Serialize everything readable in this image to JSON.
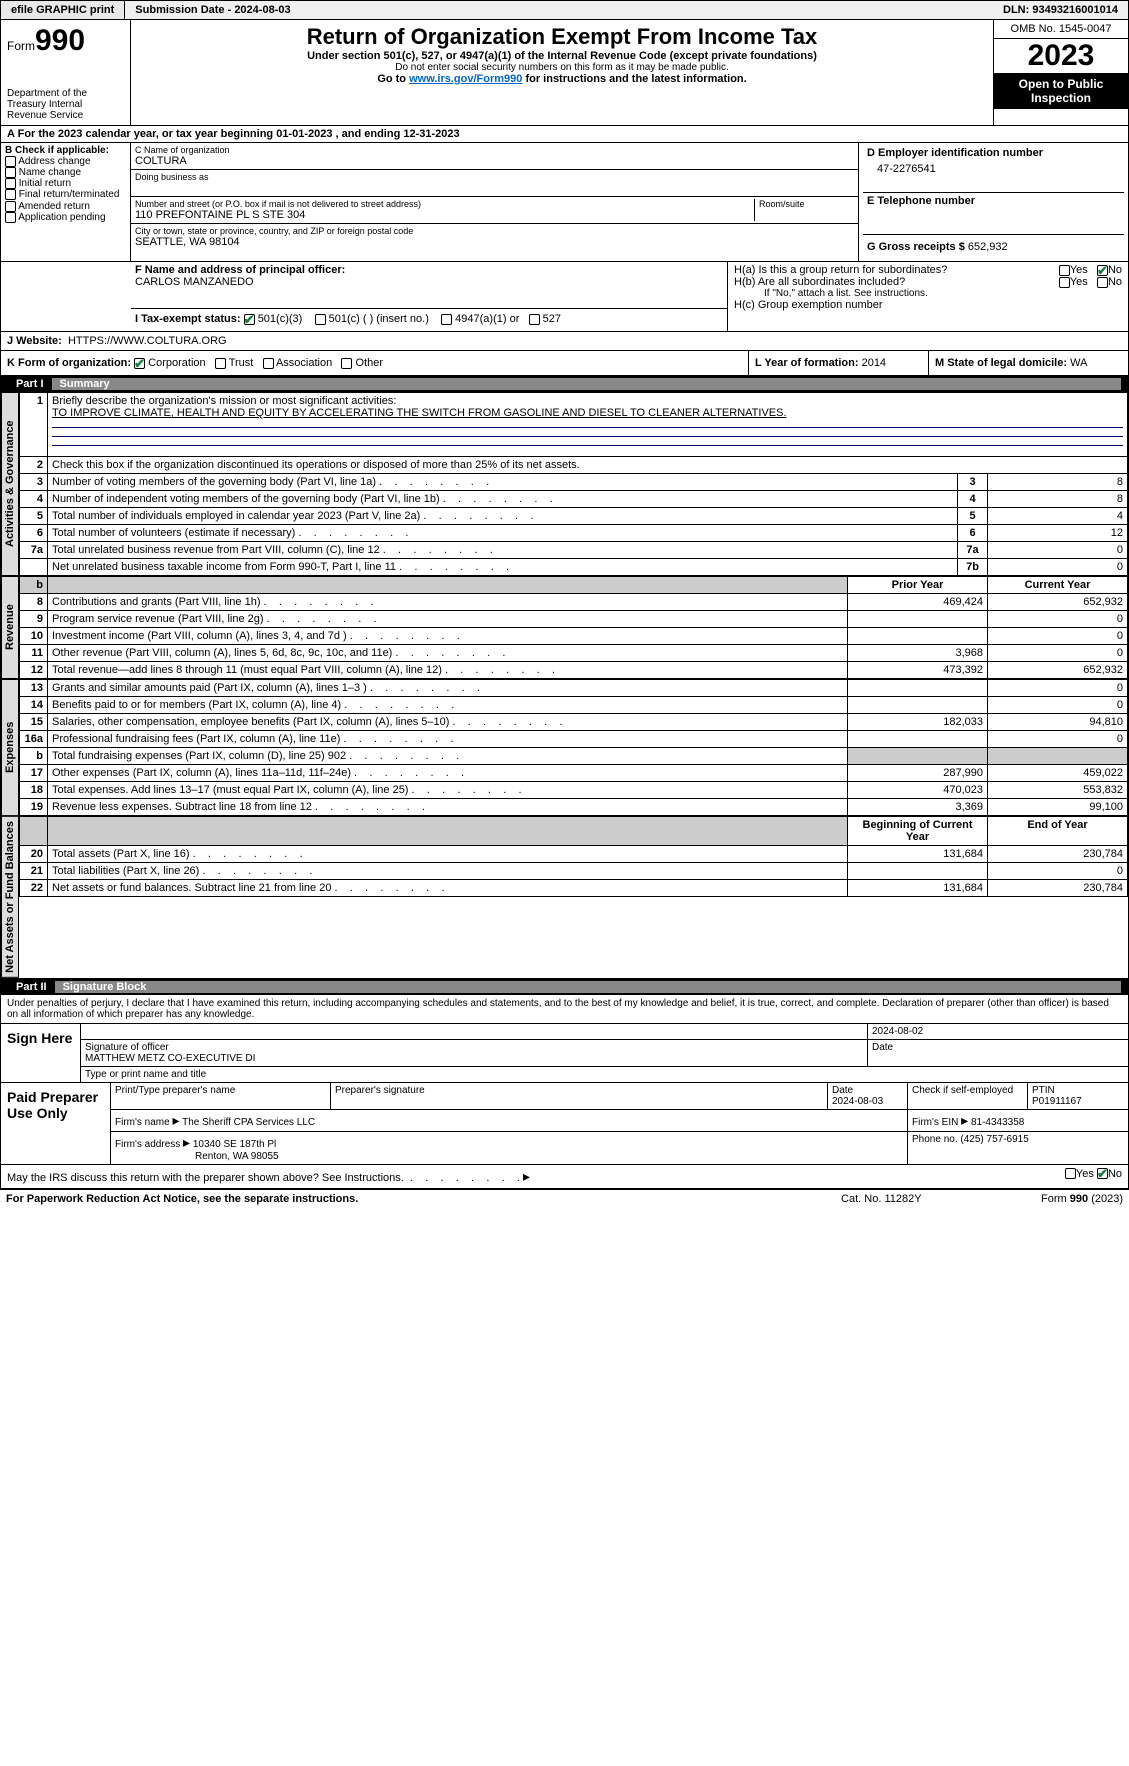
{
  "topbar": {
    "efile": "efile GRAPHIC print",
    "submission": "Submission Date - 2024-08-03",
    "dln_label": "DLN:",
    "dln": "93493216001014"
  },
  "header": {
    "form_word": "Form",
    "form_num": "990",
    "dept": "Department of the Treasury Internal Revenue Service",
    "title": "Return of Organization Exempt From Income Tax",
    "sub1": "Under section 501(c), 527, or 4947(a)(1) of the Internal Revenue Code (except private foundations)",
    "sub2": "Do not enter social security numbers on this form as it may be made public.",
    "sub3_pre": "Go to ",
    "sub3_link": "www.irs.gov/Form990",
    "sub3_post": " for instructions and the latest information.",
    "omb": "OMB No. 1545-0047",
    "year": "2023",
    "inspect": "Open to Public Inspection"
  },
  "A": {
    "text": "For the 2023 calendar year, or tax year beginning 01-01-2023   , and ending 12-31-2023"
  },
  "B": {
    "label": "B Check if applicable:",
    "items": [
      "Address change",
      "Name change",
      "Initial return",
      "Final return/terminated",
      "Amended return",
      "Application pending"
    ]
  },
  "C": {
    "name_label": "C Name of organization",
    "name": "COLTURA",
    "dba_label": "Doing business as",
    "street_label": "Number and street (or P.O. box if mail is not delivered to street address)",
    "street": "110 PREFONTAINE PL S STE 304",
    "room_label": "Room/suite",
    "city_label": "City or town, state or province, country, and ZIP or foreign postal code",
    "city": "SEATTLE, WA  98104"
  },
  "D": {
    "label": "D Employer identification number",
    "value": "47-2276541"
  },
  "E": {
    "label": "E Telephone number",
    "value": ""
  },
  "G": {
    "label": "G Gross receipts $",
    "value": "652,932"
  },
  "F": {
    "label": "F  Name and address of principal officer:",
    "value": "CARLOS MANZANEDO"
  },
  "H": {
    "a": "H(a)  Is this a group return for subordinates?",
    "b": "H(b)  Are all subordinates included?",
    "b_note": "If \"No,\" attach a list. See instructions.",
    "c": "H(c)  Group exemption number  ",
    "yes": "Yes",
    "no": "No",
    "a_yes": false,
    "a_no": true,
    "b_yes": false,
    "b_no": false
  },
  "I": {
    "label": "I   Tax-exempt status:",
    "opts": [
      "501(c)(3)",
      "501(c) (  ) (insert no.)",
      "4947(a)(1) or",
      "527"
    ],
    "checked": 0
  },
  "J": {
    "label": "J   Website: ",
    "value": "HTTPS://WWW.COLTURA.ORG"
  },
  "K": {
    "label": "K Form of organization:",
    "opts": [
      "Corporation",
      "Trust",
      "Association",
      "Other"
    ],
    "checked": 0
  },
  "L": {
    "label": "L Year of formation:",
    "value": "2014"
  },
  "M": {
    "label": "M State of legal domicile:",
    "value": "WA"
  },
  "part1": {
    "label": "Part I",
    "title": "Summary"
  },
  "summary": {
    "line1_label": "Briefly describe the organization's mission or most significant activities:",
    "line1_text": "TO IMPROVE CLIMATE, HEALTH AND EQUITY BY ACCELERATING THE SWITCH FROM GASOLINE AND DIESEL TO CLEANER ALTERNATIVES.",
    "line2_label": "Check this box      if the organization discontinued its operations or disposed of more than 25% of its net assets.",
    "gov_rows": [
      {
        "n": "3",
        "t": "Number of voting members of the governing body (Part VI, line 1a)",
        "box": "3",
        "v": "8"
      },
      {
        "n": "4",
        "t": "Number of independent voting members of the governing body (Part VI, line 1b)",
        "box": "4",
        "v": "8"
      },
      {
        "n": "5",
        "t": "Total number of individuals employed in calendar year 2023 (Part V, line 2a)",
        "box": "5",
        "v": "4"
      },
      {
        "n": "6",
        "t": "Total number of volunteers (estimate if necessary)",
        "box": "6",
        "v": "12"
      },
      {
        "n": "7a",
        "t": "Total unrelated business revenue from Part VIII, column (C), line 12",
        "box": "7a",
        "v": "0"
      },
      {
        "n": "",
        "t": "Net unrelated business taxable income from Form 990-T, Part I, line 11",
        "box": "7b",
        "v": "0"
      }
    ],
    "prior_hdr": "Prior Year",
    "curr_hdr": "Current Year",
    "rev_rows": [
      {
        "n": "8",
        "t": "Contributions and grants (Part VIII, line 1h)",
        "p": "469,424",
        "c": "652,932"
      },
      {
        "n": "9",
        "t": "Program service revenue (Part VIII, line 2g)",
        "p": "",
        "c": "0"
      },
      {
        "n": "10",
        "t": "Investment income (Part VIII, column (A), lines 3, 4, and 7d )",
        "p": "",
        "c": "0"
      },
      {
        "n": "11",
        "t": "Other revenue (Part VIII, column (A), lines 5, 6d, 8c, 9c, 10c, and 11e)",
        "p": "3,968",
        "c": "0"
      },
      {
        "n": "12",
        "t": "Total revenue—add lines 8 through 11 (must equal Part VIII, column (A), line 12)",
        "p": "473,392",
        "c": "652,932"
      }
    ],
    "exp_rows": [
      {
        "n": "13",
        "t": "Grants and similar amounts paid (Part IX, column (A), lines 1–3 )",
        "p": "",
        "c": "0"
      },
      {
        "n": "14",
        "t": "Benefits paid to or for members (Part IX, column (A), line 4)",
        "p": "",
        "c": "0"
      },
      {
        "n": "15",
        "t": "Salaries, other compensation, employee benefits (Part IX, column (A), lines 5–10)",
        "p": "182,033",
        "c": "94,810"
      },
      {
        "n": "16a",
        "t": "Professional fundraising fees (Part IX, column (A), line 11e)",
        "p": "",
        "c": "0"
      },
      {
        "n": "b",
        "t": "Total fundraising expenses (Part IX, column (D), line 25) 902",
        "p": "__GRAY__",
        "c": "__GRAY__"
      },
      {
        "n": "17",
        "t": "Other expenses (Part IX, column (A), lines 11a–11d, 11f–24e)",
        "p": "287,990",
        "c": "459,022"
      },
      {
        "n": "18",
        "t": "Total expenses. Add lines 13–17 (must equal Part IX, column (A), line 25)",
        "p": "470,023",
        "c": "553,832"
      },
      {
        "n": "19",
        "t": "Revenue less expenses. Subtract line 18 from line 12",
        "p": "3,369",
        "c": "99,100"
      }
    ],
    "net_hdr1": "Beginning of Current Year",
    "net_hdr2": "End of Year",
    "net_rows": [
      {
        "n": "20",
        "t": "Total assets (Part X, line 16)",
        "p": "131,684",
        "c": "230,784"
      },
      {
        "n": "21",
        "t": "Total liabilities (Part X, line 26)",
        "p": "",
        "c": "0"
      },
      {
        "n": "22",
        "t": "Net assets or fund balances. Subtract line 21 from line 20",
        "p": "131,684",
        "c": "230,784"
      }
    ]
  },
  "vtabs": {
    "gov": "Activities & Governance",
    "rev": "Revenue",
    "exp": "Expenses",
    "net": "Net Assets or Fund Balances"
  },
  "part2": {
    "label": "Part II",
    "title": "Signature Block"
  },
  "sig": {
    "penalties": "Under penalties of perjury, I declare that I have examined this return, including accompanying schedules and statements, and to the best of my knowledge and belief, it is true, correct, and complete. Declaration of preparer (other than officer) is based on all information of which preparer has any knowledge.",
    "sign_here": "Sign Here",
    "date1": "2024-08-02",
    "officer_sig": "Signature of officer",
    "officer_name": "MATTHEW METZ CO-EXECUTIVE DI",
    "type_name": "Type or print name and title",
    "date_lbl": "Date",
    "paid": "Paid Preparer Use Only",
    "prep_name_lbl": "Print/Type preparer's name",
    "prep_sig_lbl": "Preparer's signature",
    "prep_date": "2024-08-03",
    "self_emp": "Check        if self-employed",
    "ptin_lbl": "PTIN",
    "ptin": "P01911167",
    "firm_name_lbl": "Firm's name   ",
    "firm_name": "The Sheriff CPA Services LLC",
    "firm_ein_lbl": "Firm's EIN  ",
    "firm_ein": "81-4343358",
    "firm_addr_lbl": "Firm's address ",
    "firm_addr1": "10340 SE 187th Pl",
    "firm_addr2": "Renton, WA  98055",
    "phone_lbl": "Phone no.",
    "phone": "(425) 757-6915",
    "discuss": "May the IRS discuss this return with the preparer shown above? See Instructions.",
    "yes": "Yes",
    "no": "No"
  },
  "footer": {
    "paperwork": "For Paperwork Reduction Act Notice, see the separate instructions.",
    "cat": "Cat. No. 11282Y",
    "form": "Form 990 (2023)"
  }
}
